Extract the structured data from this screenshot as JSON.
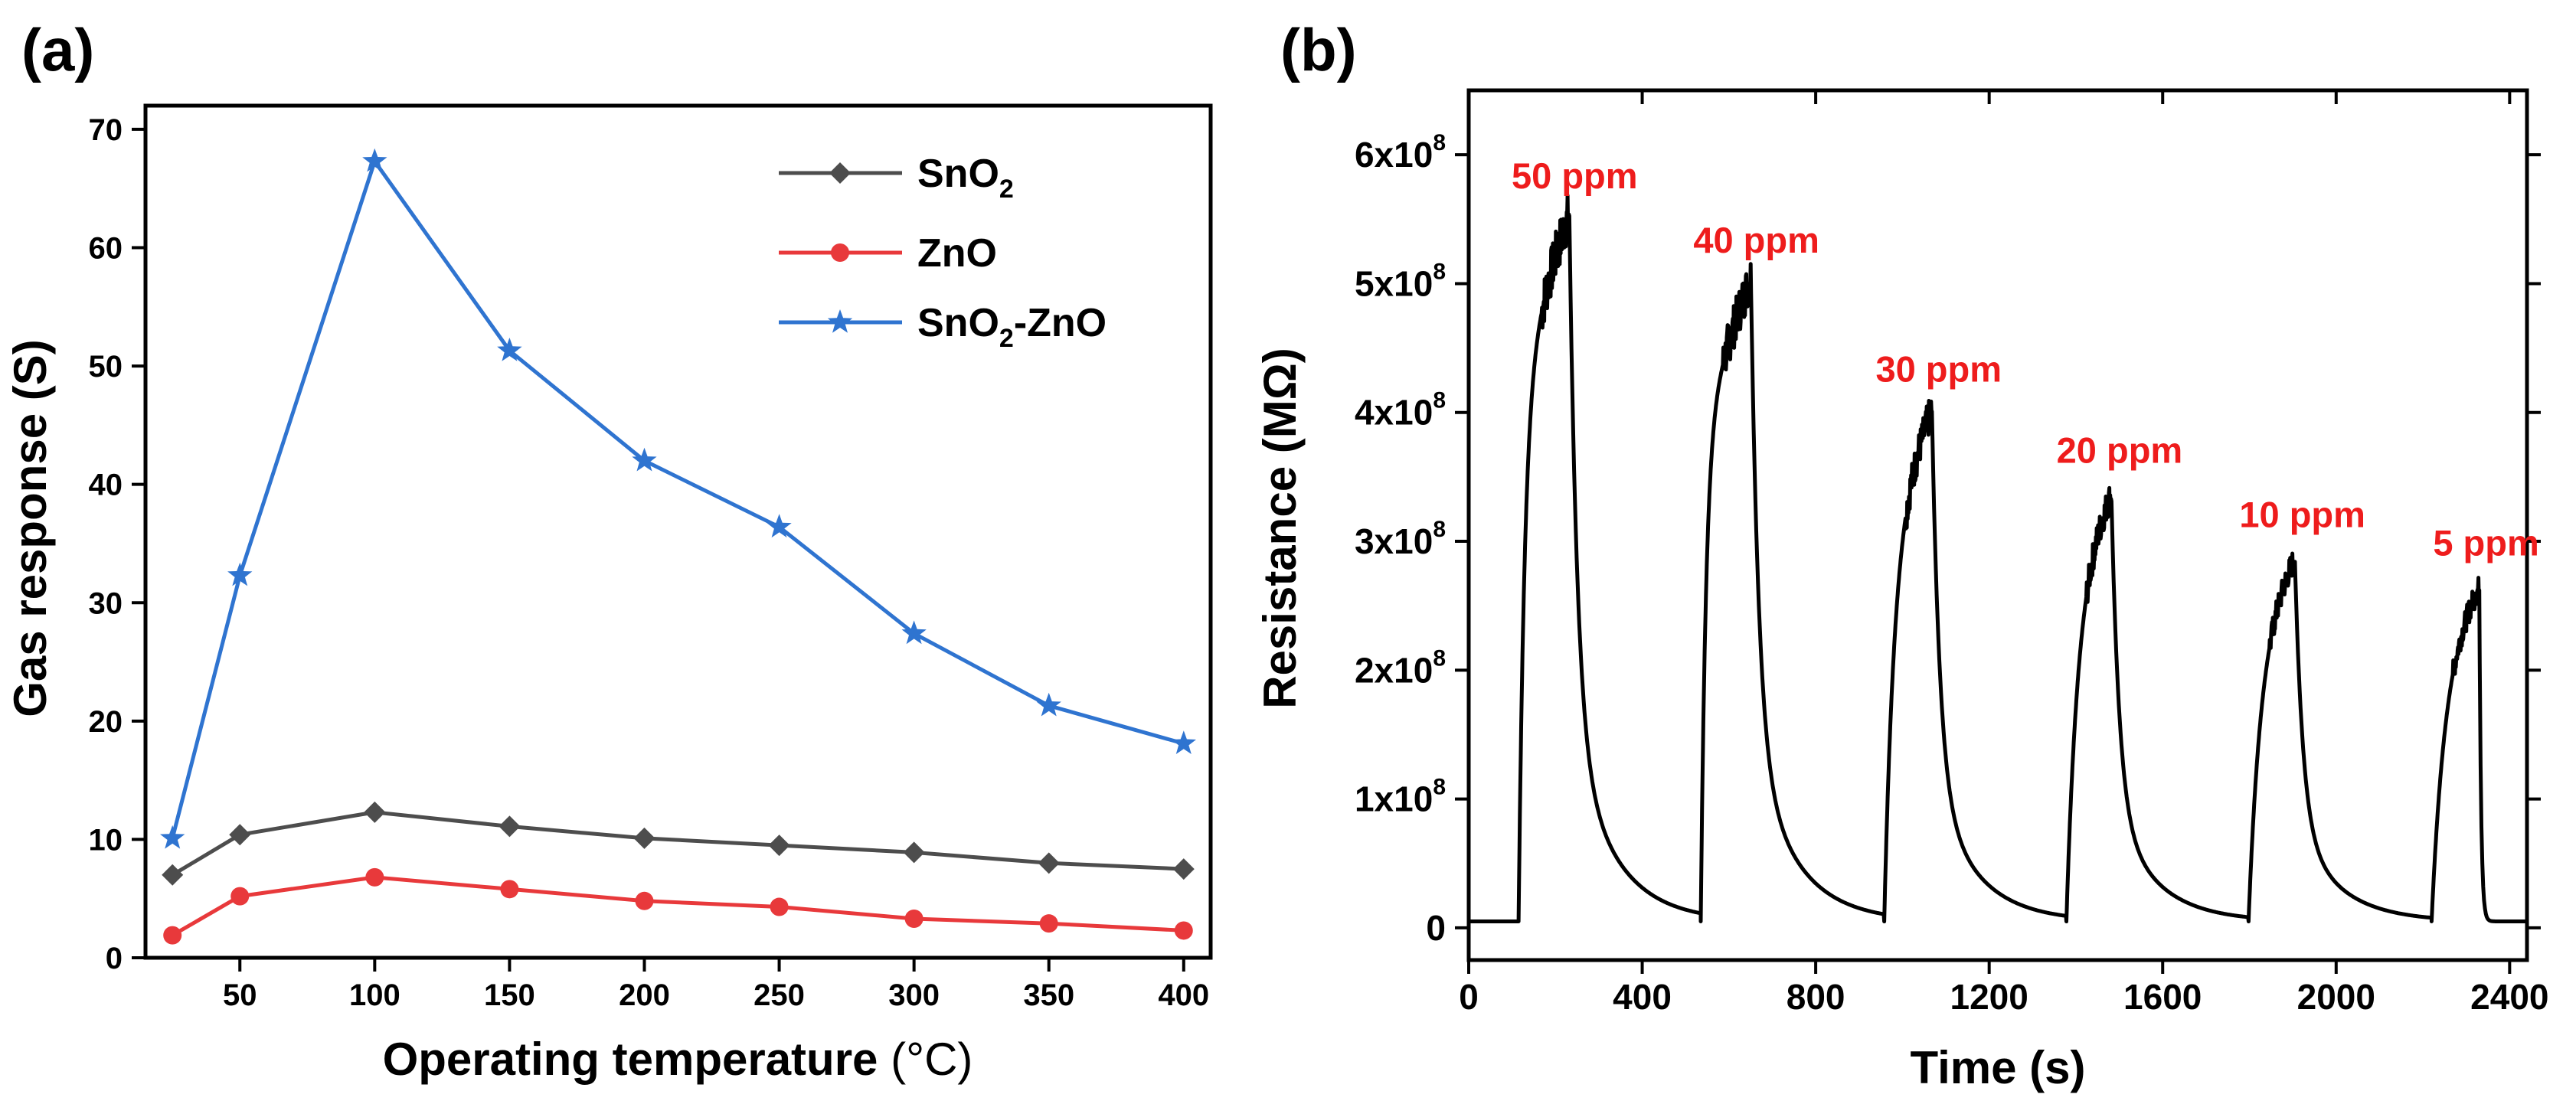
{
  "chart_data": [
    {
      "panel": "(a)",
      "type": "line",
      "xlabel": "Operating temperature",
      "xlabel_unit": "(°C)",
      "ylabel": "Gas response (S)",
      "xlim": [
        15,
        410
      ],
      "ylim": [
        0,
        72
      ],
      "xticks": [
        50,
        100,
        150,
        200,
        250,
        300,
        350,
        400
      ],
      "yticks": [
        0,
        10,
        20,
        30,
        40,
        50,
        60,
        70
      ],
      "x": [
        25,
        50,
        100,
        150,
        200,
        250,
        300,
        350,
        400
      ],
      "legend_position": "top-right",
      "series": [
        {
          "name": "SnO2",
          "label_main": "SnO",
          "label_sub": "2",
          "label_rest": "",
          "color": "#4d4d4d",
          "marker": "diamond",
          "values": [
            7.0,
            10.4,
            12.3,
            11.1,
            10.1,
            9.5,
            8.9,
            8.0,
            7.5
          ]
        },
        {
          "name": "ZnO",
          "label_main": "ZnO",
          "label_sub": "",
          "label_rest": "",
          "color": "#e8393b",
          "marker": "circle",
          "values": [
            1.9,
            5.2,
            6.8,
            5.8,
            4.8,
            4.3,
            3.3,
            2.9,
            2.3
          ]
        },
        {
          "name": "SnO2-ZnO",
          "label_main": "SnO",
          "label_sub": "2",
          "label_rest": "-ZnO",
          "color": "#2f74d0",
          "marker": "star",
          "values": [
            10.1,
            32.3,
            67.3,
            51.3,
            42.0,
            36.4,
            27.4,
            21.3,
            18.1
          ]
        }
      ]
    },
    {
      "panel": "(b)",
      "type": "line",
      "xlabel": "Time (s)",
      "ylabel": "Resistance (MΩ)",
      "xlim": [
        0,
        2440
      ],
      "ylim": [
        -25000000.0,
        650000000.0
      ],
      "xticks": [
        0,
        400,
        800,
        1200,
        1600,
        2000,
        2400
      ],
      "yticks": [
        {
          "value": 0,
          "mant": "0",
          "exp": ""
        },
        {
          "value": 100000000,
          "mant": "1x10",
          "exp": "8"
        },
        {
          "value": 200000000,
          "mant": "2x10",
          "exp": "8"
        },
        {
          "value": 300000000,
          "mant": "3x10",
          "exp": "8"
        },
        {
          "value": 400000000,
          "mant": "4x10",
          "exp": "8"
        },
        {
          "value": 500000000,
          "mant": "5x10",
          "exp": "8"
        },
        {
          "value": 600000000,
          "mant": "6x10",
          "exp": "8"
        }
      ],
      "baseline": 5000000,
      "line_color": "#000000",
      "pulses": [
        {
          "label": "50 ppm",
          "t_on": 115,
          "t_off": 232,
          "peak": 555000000.0,
          "rise_tau": 14
        },
        {
          "label": "40 ppm",
          "t_on": 535,
          "t_off": 650,
          "peak": 505000000.0,
          "rise_tau": 12
        },
        {
          "label": "30 ppm",
          "t_on": 958,
          "t_off": 1068,
          "peak": 405000000.0,
          "rise_tau": 22
        },
        {
          "label": "20 ppm",
          "t_on": 1378,
          "t_off": 1482,
          "peak": 342000000.0,
          "rise_tau": 24
        },
        {
          "label": "10 ppm",
          "t_on": 1798,
          "t_off": 1905,
          "peak": 292000000.0,
          "rise_tau": 26
        },
        {
          "label": "5 ppm",
          "t_on": 2220,
          "t_off": 2330,
          "peak": 270000000.0,
          "rise_tau": 28
        }
      ],
      "annotation_color": "#ee1c1c"
    }
  ]
}
